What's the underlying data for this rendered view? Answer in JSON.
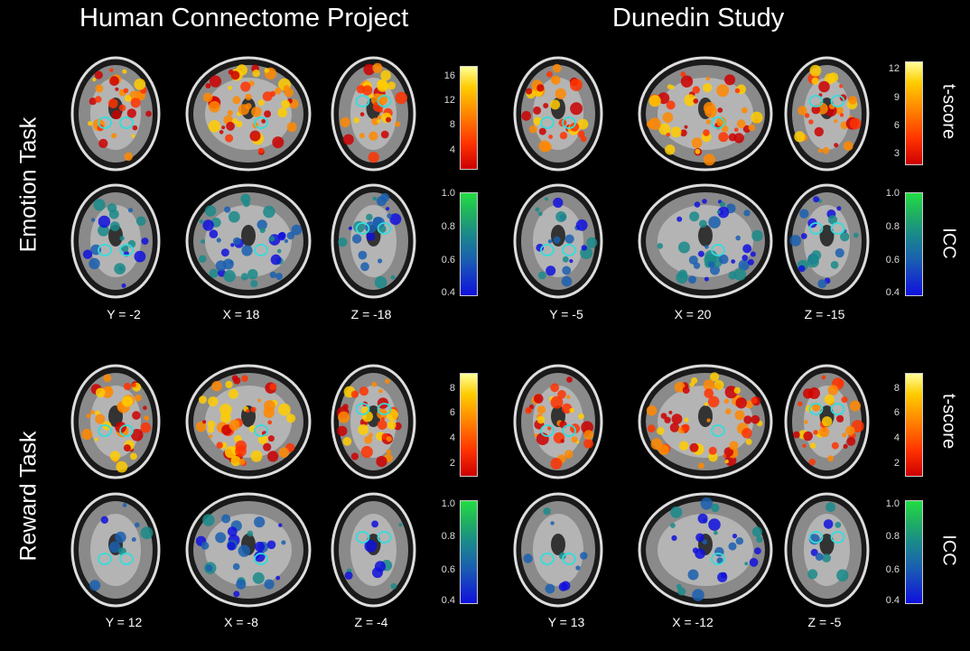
{
  "columns": [
    {
      "title": "Human Connectome Project"
    },
    {
      "title": "Dunedin Study"
    }
  ],
  "rows": [
    {
      "title": "Emotion Task"
    },
    {
      "title": "Reward Task"
    }
  ],
  "coords": {
    "emotion_hcp": [
      "Y = -2",
      "X = 18",
      "Z = -18"
    ],
    "emotion_dunedin": [
      "Y = -5",
      "X = 20",
      "Z = -15"
    ],
    "reward_hcp": [
      "Y = 12",
      "X = -8",
      "Z = -4"
    ],
    "reward_dunedin": [
      "Y = 13",
      "X = -12",
      "Z = -5"
    ]
  },
  "colorbars": {
    "emotion_hcp_t": {
      "ticks": [
        "16",
        "12",
        "8",
        "4"
      ],
      "type": "heat"
    },
    "emotion_dunedin_t": {
      "ticks": [
        "12",
        "9",
        "6",
        "3"
      ],
      "type": "heat",
      "label": "t-score"
    },
    "emotion_hcp_icc": {
      "ticks": [
        "1.0",
        "0.8",
        "0.6",
        "0.4"
      ],
      "type": "icc"
    },
    "emotion_dunedin_icc": {
      "ticks": [
        "1.0",
        "0.8",
        "0.6",
        "0.4"
      ],
      "type": "icc",
      "label": "ICC"
    },
    "reward_hcp_t": {
      "ticks": [
        "8",
        "6",
        "4",
        "2"
      ],
      "type": "heat"
    },
    "reward_dunedin_t": {
      "ticks": [
        "8",
        "6",
        "4",
        "2"
      ],
      "type": "heat",
      "label": "t-score"
    },
    "reward_hcp_icc": {
      "ticks": [
        "1.0",
        "0.8",
        "0.6",
        "0.4"
      ],
      "type": "icc"
    },
    "reward_dunedin_icc": {
      "ticks": [
        "1.0",
        "0.8",
        "0.6",
        "0.4"
      ],
      "type": "icc",
      "label": "ICC"
    }
  },
  "colors": {
    "background": "#000000",
    "roi_outline": "#33dddd",
    "heat": [
      "#cc0000",
      "#ff3300",
      "#ff8800",
      "#ffcc00",
      "#ffff99"
    ],
    "icc": [
      "#1010dd",
      "#1a5fb0",
      "#1a8a8a",
      "#20b060",
      "#22dd44"
    ]
  }
}
